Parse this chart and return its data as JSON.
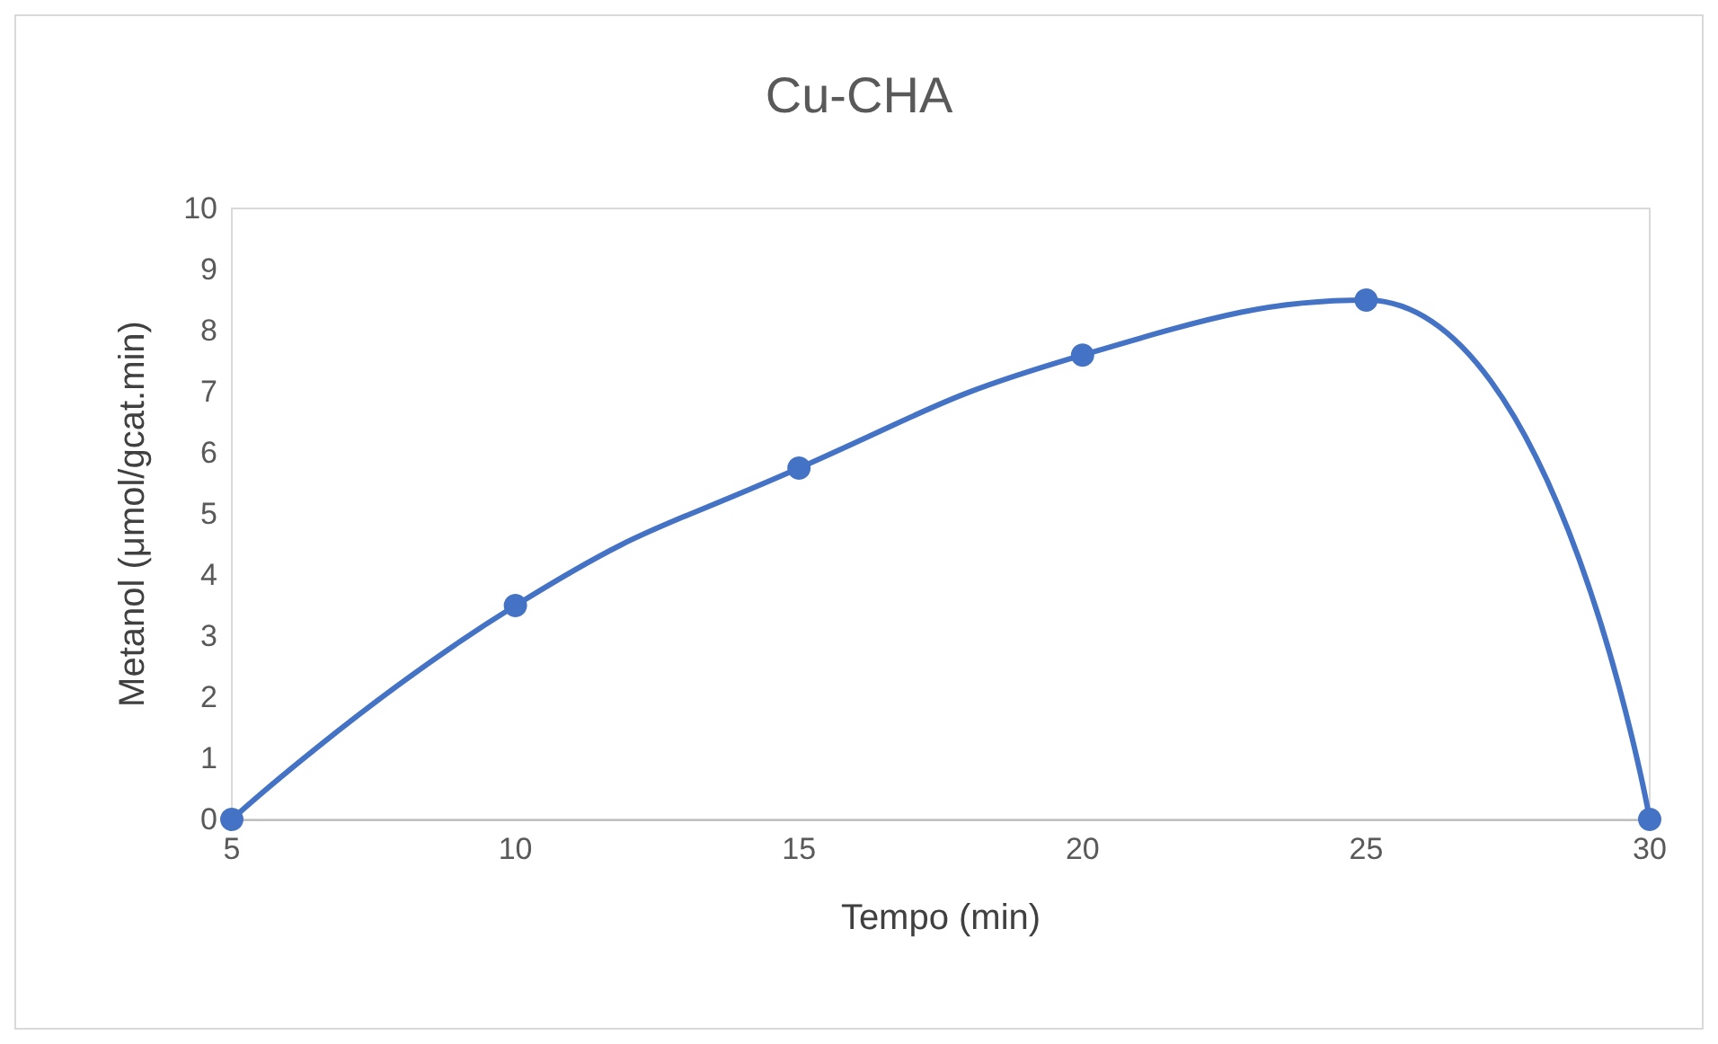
{
  "chart_data": {
    "type": "line",
    "title": "Cu-CHA",
    "xlabel": "Tempo (min)",
    "ylabel": "Metanol (μmol/gcat.min)",
    "x": [
      5,
      10,
      15,
      20,
      25,
      30
    ],
    "series": [
      {
        "color": "#4472c4",
        "values": [
          0,
          3.5,
          5.75,
          7.6,
          8.5,
          0
        ]
      }
    ],
    "xlim": [
      5,
      30
    ],
    "xticks": [
      5,
      10,
      15,
      20,
      25,
      30
    ],
    "ylim": [
      0,
      10
    ],
    "yticks": [
      0,
      1,
      2,
      3,
      4,
      5,
      6,
      7,
      8,
      9,
      10
    ],
    "grid": false,
    "marker": "circle",
    "line_style": "solid"
  }
}
